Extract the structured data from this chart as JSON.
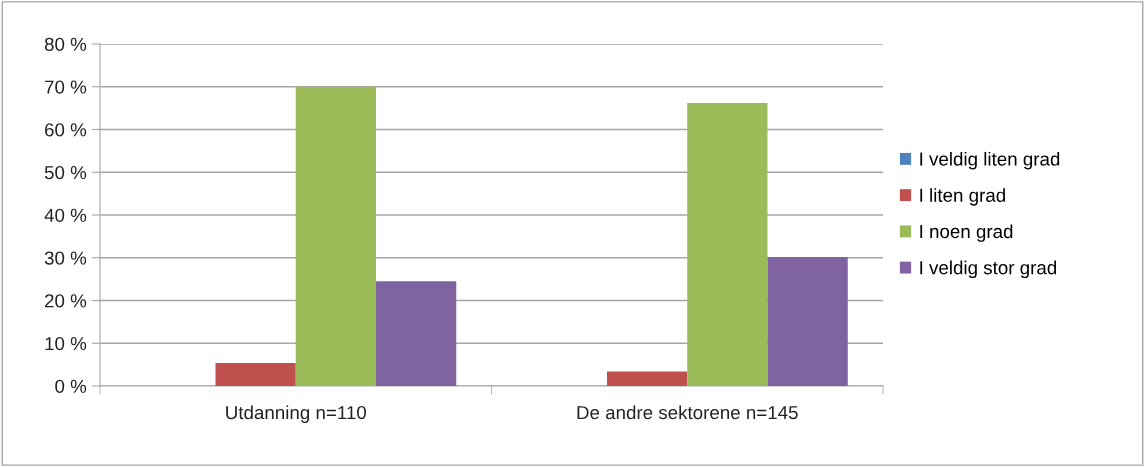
{
  "chart_data": {
    "type": "bar",
    "categories": [
      "Utdanning n=110",
      "De andre sektorene n=145"
    ],
    "series": [
      {
        "name": "I veldig liten grad",
        "color": "#4f81bd",
        "values": [
          0,
          0
        ]
      },
      {
        "name": "I liten grad",
        "color": "#c0504d",
        "values": [
          5.4,
          3.4
        ]
      },
      {
        "name": "I noen grad",
        "color": "#9bbb59",
        "values": [
          70,
          66.2
        ]
      },
      {
        "name": "I veldig stor grad",
        "color": "#8064a2",
        "values": [
          24.5,
          30.2
        ]
      }
    ],
    "ylim": [
      0,
      80
    ],
    "yticks": [
      {
        "value": 0,
        "label": "0 %"
      },
      {
        "value": 10,
        "label": "10 %"
      },
      {
        "value": 20,
        "label": "20 %"
      },
      {
        "value": 30,
        "label": "30 %"
      },
      {
        "value": 40,
        "label": "40 %"
      },
      {
        "value": 50,
        "label": "50 %"
      },
      {
        "value": 60,
        "label": "60 %"
      },
      {
        "value": 70,
        "label": "70 %"
      },
      {
        "value": 80,
        "label": "80 %"
      }
    ],
    "grid": "y",
    "legend": "right"
  }
}
